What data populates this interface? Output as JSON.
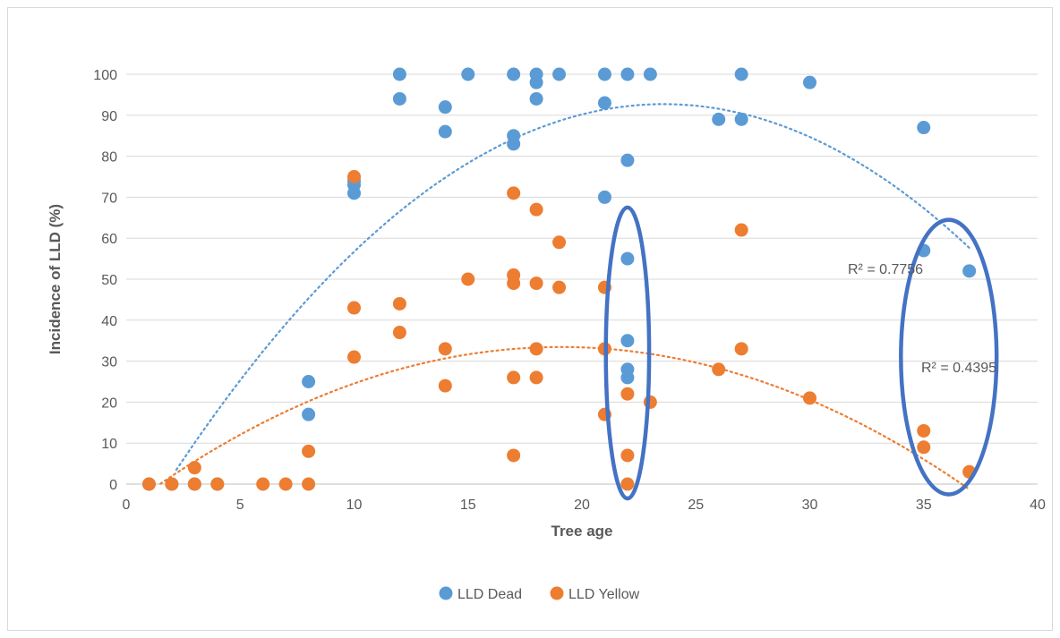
{
  "chart_data": {
    "type": "scatter",
    "title": "",
    "xlabel": "Tree age",
    "ylabel": "Incidence of LLD (%)",
    "xlim": [
      0,
      40
    ],
    "ylim": [
      0,
      100
    ],
    "xticks": [
      0,
      5,
      10,
      15,
      20,
      25,
      30,
      35,
      40
    ],
    "yticks": [
      0,
      10,
      20,
      30,
      40,
      50,
      60,
      70,
      80,
      90,
      100
    ],
    "grid": "horizontal",
    "legend_position": "bottom",
    "series": [
      {
        "name": "LLD Dead",
        "color": "#5b9bd5",
        "points": [
          [
            1,
            0
          ],
          [
            2,
            0
          ],
          [
            3,
            0
          ],
          [
            4,
            0
          ],
          [
            8,
            25
          ],
          [
            8,
            17
          ],
          [
            10,
            74
          ],
          [
            10,
            73
          ],
          [
            10,
            71
          ],
          [
            12,
            100
          ],
          [
            12,
            94
          ],
          [
            14,
            92
          ],
          [
            14,
            86
          ],
          [
            15,
            100
          ],
          [
            17,
            100
          ],
          [
            17,
            85
          ],
          [
            17,
            83
          ],
          [
            18,
            100
          ],
          [
            18,
            98
          ],
          [
            18,
            94
          ],
          [
            19,
            100
          ],
          [
            21,
            100
          ],
          [
            21,
            93
          ],
          [
            21,
            70
          ],
          [
            22,
            100
          ],
          [
            22,
            79
          ],
          [
            22,
            55
          ],
          [
            22,
            35
          ],
          [
            22,
            28
          ],
          [
            22,
            26
          ],
          [
            23,
            100
          ],
          [
            26,
            89
          ],
          [
            27,
            100
          ],
          [
            27,
            89
          ],
          [
            30,
            98
          ],
          [
            35,
            87
          ],
          [
            35,
            57
          ],
          [
            37,
            52
          ]
        ],
        "trendline": {
          "type": "polynomial",
          "coef": [
            -15.8,
            9.2,
            -0.195
          ],
          "x_range": [
            2.2,
            37
          ],
          "r2_label": "R² = 0.7756"
        }
      },
      {
        "name": "LLD Yellow",
        "color": "#ed7d31",
        "points": [
          [
            1,
            0
          ],
          [
            2,
            0
          ],
          [
            3,
            4
          ],
          [
            3,
            0
          ],
          [
            4,
            0
          ],
          [
            6,
            0
          ],
          [
            7,
            0
          ],
          [
            8,
            8
          ],
          [
            8,
            0
          ],
          [
            10,
            75
          ],
          [
            10,
            43
          ],
          [
            10,
            31
          ],
          [
            12,
            44
          ],
          [
            12,
            37
          ],
          [
            14,
            33
          ],
          [
            14,
            24
          ],
          [
            15,
            50
          ],
          [
            17,
            71
          ],
          [
            17,
            51
          ],
          [
            17,
            49
          ],
          [
            17,
            26
          ],
          [
            17,
            7
          ],
          [
            18,
            67
          ],
          [
            18,
            49
          ],
          [
            18,
            33
          ],
          [
            18,
            26
          ],
          [
            19,
            59
          ],
          [
            19,
            48
          ],
          [
            21,
            48
          ],
          [
            21,
            33
          ],
          [
            21,
            17
          ],
          [
            22,
            22
          ],
          [
            22,
            7
          ],
          [
            22,
            0
          ],
          [
            23,
            20
          ],
          [
            26,
            28
          ],
          [
            27,
            62
          ],
          [
            27,
            33
          ],
          [
            30,
            21
          ],
          [
            35,
            13
          ],
          [
            35,
            9
          ],
          [
            37,
            3
          ]
        ],
        "trendline": {
          "type": "polynomial",
          "coef": [
            -5.85,
            4.12,
            -0.108
          ],
          "x_range": [
            1.5,
            37
          ],
          "r2_label": "R² = 0.4395"
        }
      }
    ],
    "annotations": [
      {
        "type": "ellipse",
        "cx": 22,
        "cy": 32,
        "rx": 0.95,
        "ry": 35.5,
        "color": "#4472c4"
      },
      {
        "type": "ellipse",
        "cx": 36.1,
        "cy": 31,
        "rx": 2.1,
        "ry": 33.5,
        "color": "#4472c4"
      }
    ]
  }
}
